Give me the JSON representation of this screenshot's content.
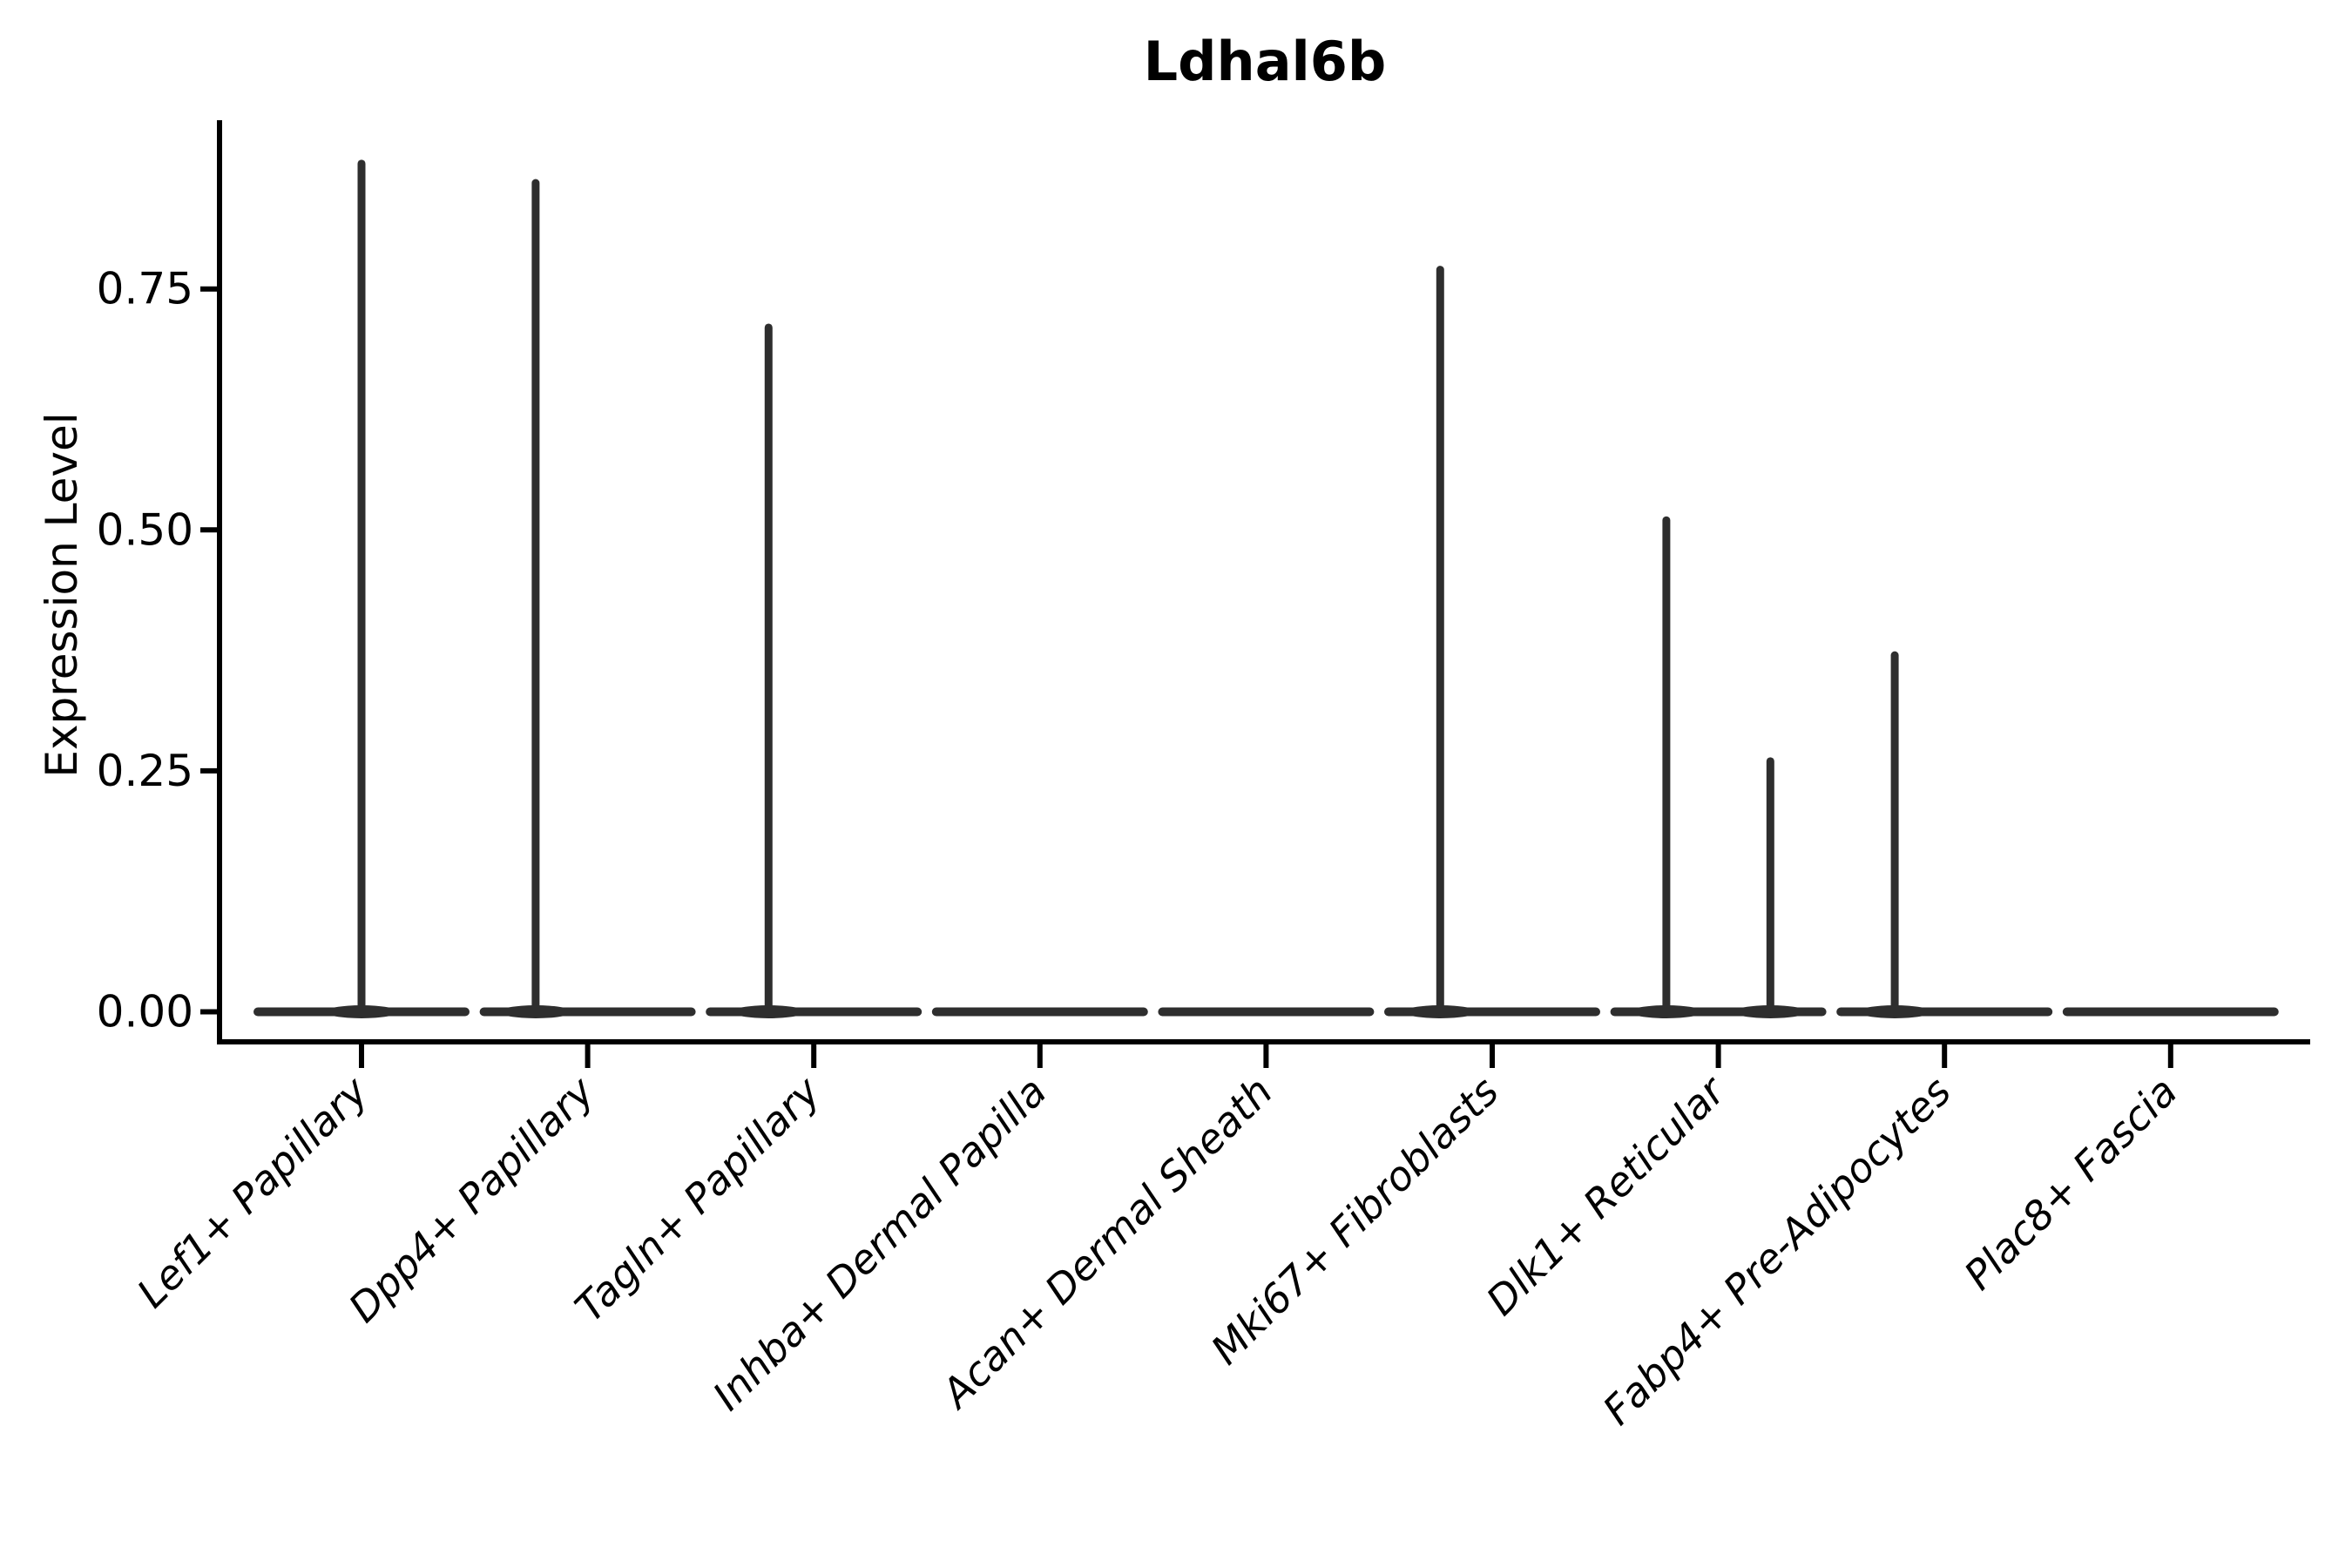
{
  "figure": {
    "title": "Ldhal6b",
    "ylabel": "Expression Level"
  },
  "colors": {
    "violin": "#2e2e2e",
    "axis": "#000000",
    "text": "#000000",
    "background": "#ffffff"
  },
  "chart_data": {
    "type": "violin",
    "title": "Ldhal6b",
    "xlabel": "",
    "ylabel": "Expression Level",
    "ylim": [
      -0.03,
      0.93
    ],
    "grid": false,
    "legend": "none",
    "yticks": {
      "values": [
        0.0,
        0.25,
        0.5,
        0.75
      ],
      "labels": [
        "0.00",
        "0.25",
        "0.50",
        "0.75"
      ]
    },
    "categories": [
      "Lef1+ Papillary",
      "Dpp4+ Papillary",
      "Tagln+ Papillary",
      "Inhba+ Dermal Papilla",
      "Acan+ Dermal Sheath",
      "Mki67+ Fibroblasts",
      "Dlk1+ Reticular",
      "Fabp4+ Pre-Adipocytes",
      "Plac8+ Fascia"
    ],
    "violins": [
      {
        "category": "Lef1+ Papillary",
        "base_value": 0.0,
        "max_expression": 0.88,
        "spikes": [
          {
            "offset": 0.0,
            "peak": 0.88
          }
        ]
      },
      {
        "category": "Dpp4+ Papillary",
        "base_value": 0.0,
        "max_expression": 0.86,
        "spikes": [
          {
            "offset": -0.23,
            "peak": 0.86
          }
        ]
      },
      {
        "category": "Tagln+ Papillary",
        "base_value": 0.0,
        "max_expression": 0.71,
        "spikes": [
          {
            "offset": -0.2,
            "peak": 0.71
          }
        ]
      },
      {
        "category": "Inhba+ Dermal Papilla",
        "base_value": 0.0,
        "max_expression": 0.0,
        "spikes": []
      },
      {
        "category": "Acan+ Dermal Sheath",
        "base_value": 0.0,
        "max_expression": 0.0,
        "spikes": []
      },
      {
        "category": "Mki67+ Fibroblasts",
        "base_value": 0.0,
        "max_expression": 0.77,
        "spikes": [
          {
            "offset": -0.23,
            "peak": 0.77
          }
        ]
      },
      {
        "category": "Dlk1+ Reticular",
        "base_value": 0.0,
        "max_expression": 0.51,
        "spikes": [
          {
            "offset": -0.23,
            "peak": 0.51
          },
          {
            "offset": 0.23,
            "peak": 0.26
          }
        ]
      },
      {
        "category": "Fabp4+ Pre-Adipocytes",
        "base_value": 0.0,
        "max_expression": 0.37,
        "spikes": [
          {
            "offset": -0.22,
            "peak": 0.37
          }
        ]
      },
      {
        "category": "Plac8+ Fascia",
        "base_value": 0.0,
        "max_expression": 0.0,
        "spikes": []
      }
    ]
  }
}
